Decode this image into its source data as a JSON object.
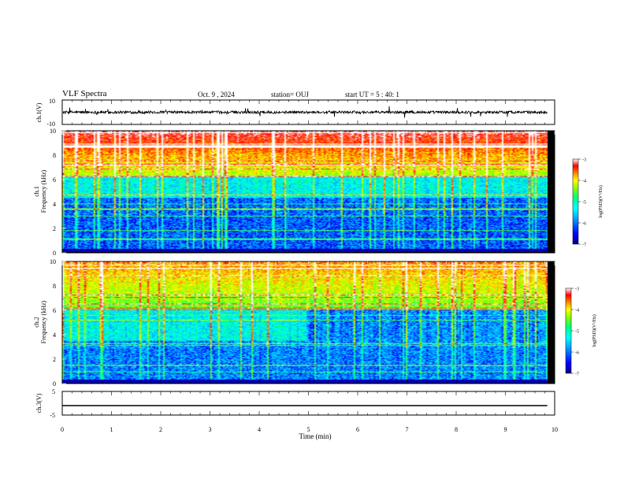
{
  "header": {
    "title": "VLF Spectra",
    "date": "Oct. 9 , 2024",
    "station": "station= OUJ",
    "start": "start UT = 5 : 40: 1"
  },
  "chart_data": [
    {
      "type": "line",
      "name": "ch1-waveform",
      "ylabel": "ch.1(V)",
      "ylim": [
        -10,
        10
      ],
      "yticks": [
        "10",
        "-10"
      ],
      "baseline": 0,
      "xlim": [
        0,
        9.85
      ]
    },
    {
      "type": "heatmap",
      "name": "ch1-spectrogram",
      "ylabel": "ch.1\nFrequency (kHz)",
      "ylabel_lines": [
        "ch.1",
        "Frequency (kHz)"
      ],
      "ylim": [
        0,
        10
      ],
      "yticks": [
        "0",
        "2",
        "4",
        "6",
        "8",
        "10"
      ],
      "colorbar": {
        "label": "log(PSD)(V²/Hz)",
        "ticks": [
          "-3",
          "-4",
          "-5",
          "-6",
          "-7"
        ],
        "range": [
          -7,
          -3
        ]
      }
    },
    {
      "type": "heatmap",
      "name": "ch2-spectrogram",
      "ylabel_lines": [
        "ch.2",
        "Frequency (kHz)"
      ],
      "ylim": [
        0,
        10
      ],
      "yticks": [
        "0",
        "2",
        "4",
        "6",
        "8",
        "10"
      ],
      "colorbar": {
        "label": "log(PSD)(V²/Hz)",
        "ticks": [
          "-3",
          "-4",
          "-5",
          "-6",
          "-7"
        ],
        "range": [
          -7,
          -3
        ]
      }
    },
    {
      "type": "line",
      "name": "ch3-waveform",
      "ylabel": "ch.3(V)",
      "ylim": [
        -5,
        5
      ],
      "yticks": [
        "5",
        "-5"
      ],
      "baseline": -1,
      "xlim": [
        0,
        9.85
      ]
    }
  ],
  "x_axis": {
    "label": "Time (min)",
    "range": [
      0,
      10
    ],
    "ticks": [
      "0",
      "1",
      "2",
      "3",
      "4",
      "5",
      "6",
      "7",
      "8",
      "9",
      "10"
    ]
  },
  "colors": {
    "colormap": [
      "#000080",
      "#0000ff",
      "#00a0ff",
      "#00ffff",
      "#00ff80",
      "#80ff00",
      "#ffff00",
      "#ff8000",
      "#ff0000",
      "#ffffff"
    ]
  }
}
